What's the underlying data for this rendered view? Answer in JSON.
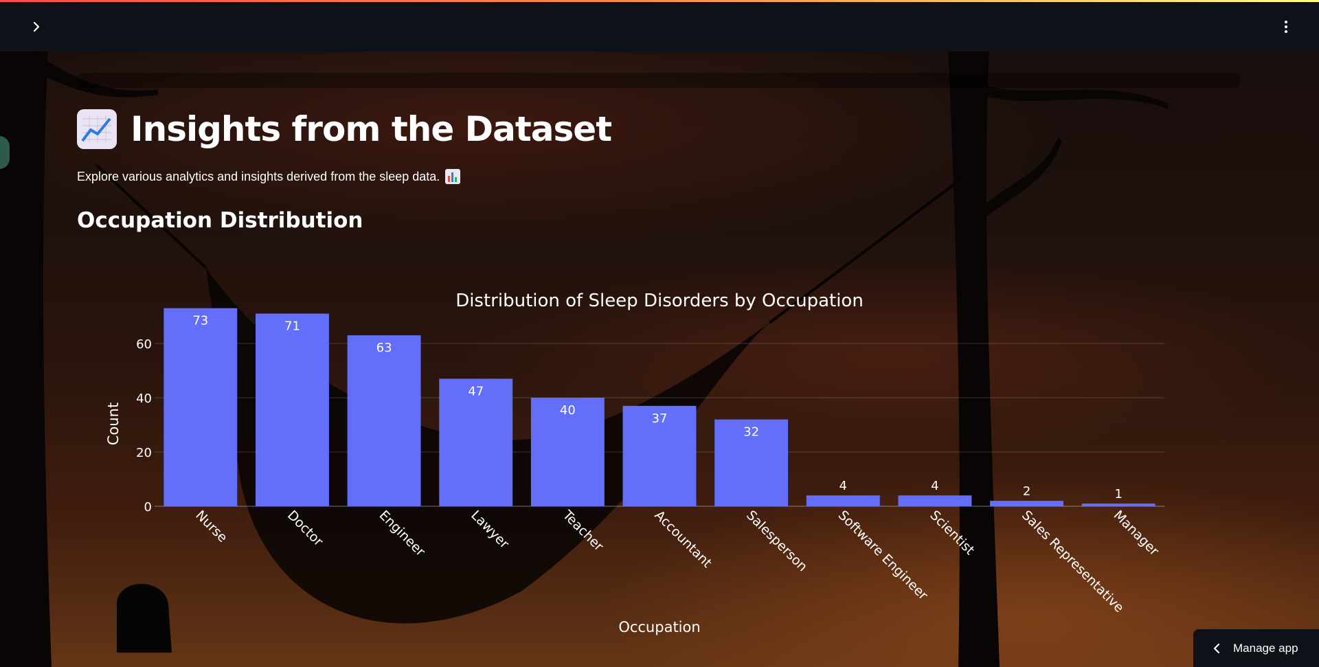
{
  "header": {
    "expand_icon": "chevron-right-icon",
    "menu_icon": "more-vertical-icon"
  },
  "page": {
    "title": "Insights from the Dataset",
    "title_icon": "chart-increasing-emoji",
    "subtitle": "Explore various analytics and insights derived from the sleep data.",
    "subtitle_icon": "bar-chart-emoji",
    "section_heading": "Occupation Distribution"
  },
  "manage_app": {
    "label": "Manage app",
    "icon": "chevron-left-icon"
  },
  "colors": {
    "bar": "#636efa",
    "header_bg": "#0e1117",
    "accent_stripe": [
      "#ff4b4b",
      "#fffd80"
    ]
  },
  "chart_data": {
    "type": "bar",
    "title": "Distribution of Sleep Disorders by Occupation",
    "xlabel": "Occupation",
    "ylabel": "Count",
    "categories": [
      "Nurse",
      "Doctor",
      "Engineer",
      "Lawyer",
      "Teacher",
      "Accountant",
      "Salesperson",
      "Software Engineer",
      "Scientist",
      "Sales Representative",
      "Manager"
    ],
    "values": [
      73,
      71,
      63,
      47,
      40,
      37,
      32,
      4,
      4,
      2,
      1
    ],
    "yticks": [
      0,
      20,
      40,
      60
    ],
    "grid": true,
    "legend": false
  }
}
